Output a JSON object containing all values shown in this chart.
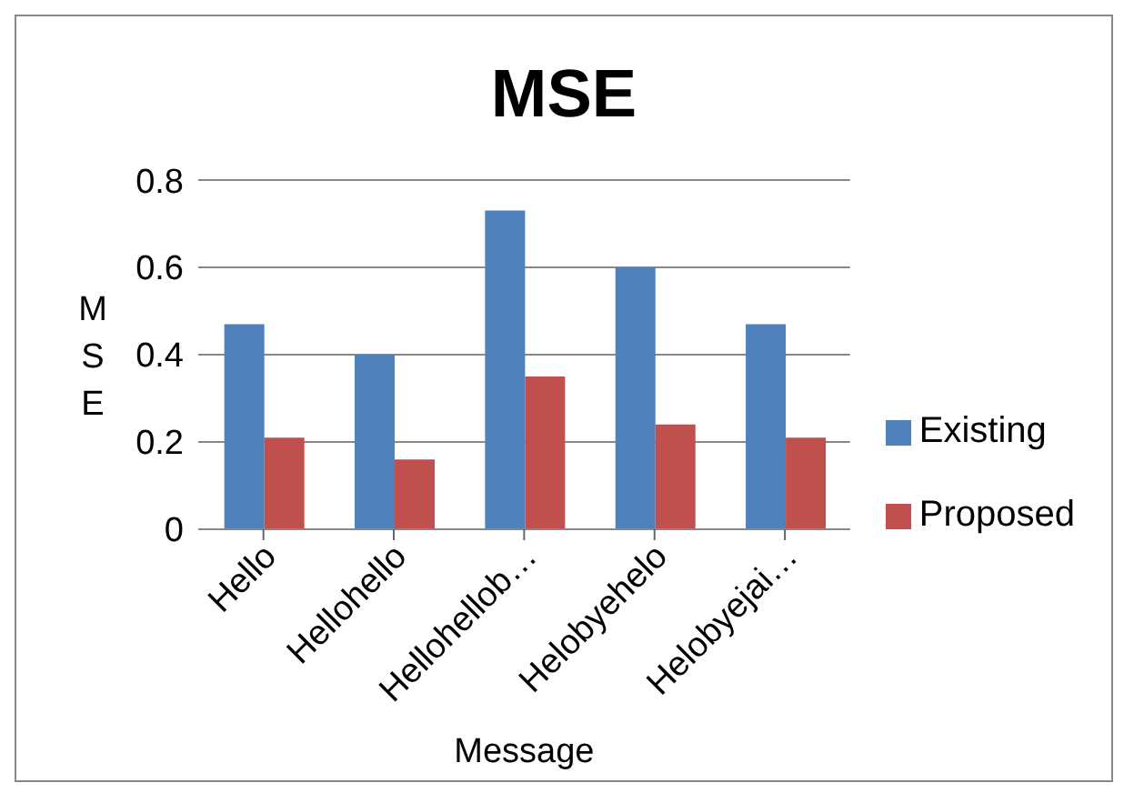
{
  "chart_data": {
    "type": "bar",
    "title": "MSE",
    "xlabel": "Message",
    "ylabel": "MSE",
    "categories": [
      "Hello",
      "Hellohello",
      "Hellohellob…",
      "Helobyehelo",
      "Helobyejai…"
    ],
    "series": [
      {
        "name": "Existing",
        "color": "#4f81bd",
        "values": [
          0.47,
          0.4,
          0.73,
          0.6,
          0.47
        ]
      },
      {
        "name": "Proposed",
        "color": "#c0504d",
        "values": [
          0.21,
          0.16,
          0.35,
          0.24,
          0.21
        ]
      }
    ],
    "ylim": [
      0,
      0.8
    ],
    "yticks": [
      0,
      0.2,
      0.4,
      0.6,
      0.8
    ],
    "grid": "y",
    "legend": "right"
  }
}
